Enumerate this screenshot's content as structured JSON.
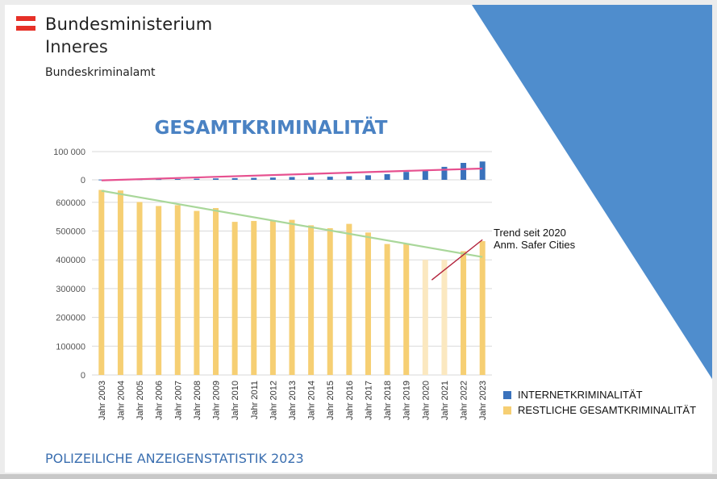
{
  "header": {
    "ministry_line1": "Bundesministerium",
    "ministry_line2": "Inneres",
    "agency": "Bundeskriminalamt"
  },
  "footer": {
    "text": "POLIZEILICHE ANZEIGENSTATISTIK 2023"
  },
  "colors": {
    "flag_red": "#e63027",
    "triangle_blue": "#4f8dcd",
    "internet_bar": "#3a72bc",
    "rest_bar": "#f6cf73",
    "rest_bar_faded": "#fbe8c0",
    "title": "#4a82c3",
    "trend_green": "#a9d79a",
    "trend_pink": "#e6508f",
    "trend_2020_red": "#b2213a"
  },
  "chart_data": {
    "type": "bar",
    "title": "GESAMTKRIMINALITÄT",
    "categories": [
      "Jahr 2003",
      "Jahr 2004",
      "Jahr 2005",
      "Jahr 2006",
      "Jahr 2007",
      "Jahr 2008",
      "Jahr 2009",
      "Jahr 2010",
      "Jahr 2011",
      "Jahr 2012",
      "Jahr 2013",
      "Jahr 2014",
      "Jahr 2015",
      "Jahr 2016",
      "Jahr 2017",
      "Jahr 2018",
      "Jahr 2019",
      "Jahr 2020",
      "Jahr 2021",
      "Jahr 2022",
      "Jahr 2023"
    ],
    "series": [
      {
        "name": "INTERNETKRIMINALITÄT",
        "values": [
          1000,
          1500,
          2000,
          2500,
          3000,
          4000,
          5000,
          6000,
          7000,
          8000,
          10000,
          10000,
          11000,
          13000,
          16000,
          20000,
          28000,
          35000,
          46000,
          60000,
          65000
        ],
        "ylim": [
          0,
          100000
        ],
        "yticks": [
          "100 000",
          "0"
        ]
      },
      {
        "name": "RESTLICHE GESAMTKRIMINALITÄT",
        "values": [
          643000,
          641000,
          601000,
          587000,
          590000,
          570000,
          580000,
          532000,
          535000,
          535000,
          539000,
          520000,
          510000,
          525000,
          495000,
          455000,
          455000,
          400000,
          400000,
          430000,
          465000
        ],
        "faded": [
          false,
          false,
          false,
          false,
          false,
          false,
          false,
          false,
          false,
          false,
          false,
          false,
          false,
          false,
          false,
          false,
          false,
          true,
          true,
          false,
          false
        ],
        "ylim": [
          0,
          650000
        ],
        "yticks": [
          "600000",
          "500000",
          "400000",
          "300000",
          "200000",
          "100000",
          "0"
        ]
      }
    ],
    "trendlines": [
      {
        "series": "INTERNETKRIMINALITÄT",
        "from": [
          "Jahr 2003",
          -2000
        ],
        "to": [
          "Jahr 2023",
          40000
        ]
      },
      {
        "series": "RESTLICHE GESAMTKRIMINALITÄT",
        "from": [
          "Jahr 2003",
          640000
        ],
        "to": [
          "Jahr 2023",
          410000
        ]
      },
      {
        "series": "RESTLICHE GESAMTKRIMINALITÄT",
        "from": [
          "Jahr 2020",
          330000
        ],
        "to": [
          "Jahr 2023",
          470000
        ]
      }
    ],
    "annotation": {
      "line1": "Trend seit 2020",
      "line2": "Anm. Safer Cities"
    },
    "legend_position": "bottom-right"
  }
}
